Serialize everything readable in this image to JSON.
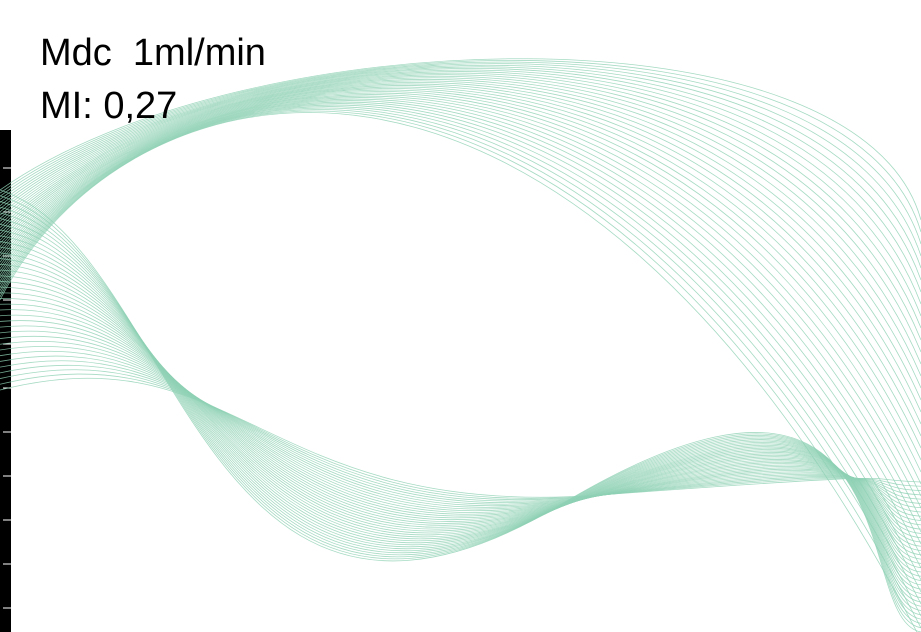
{
  "text": {
    "line1": "Mdc  1ml/min",
    "line2": "MI: 0,27"
  }
}
